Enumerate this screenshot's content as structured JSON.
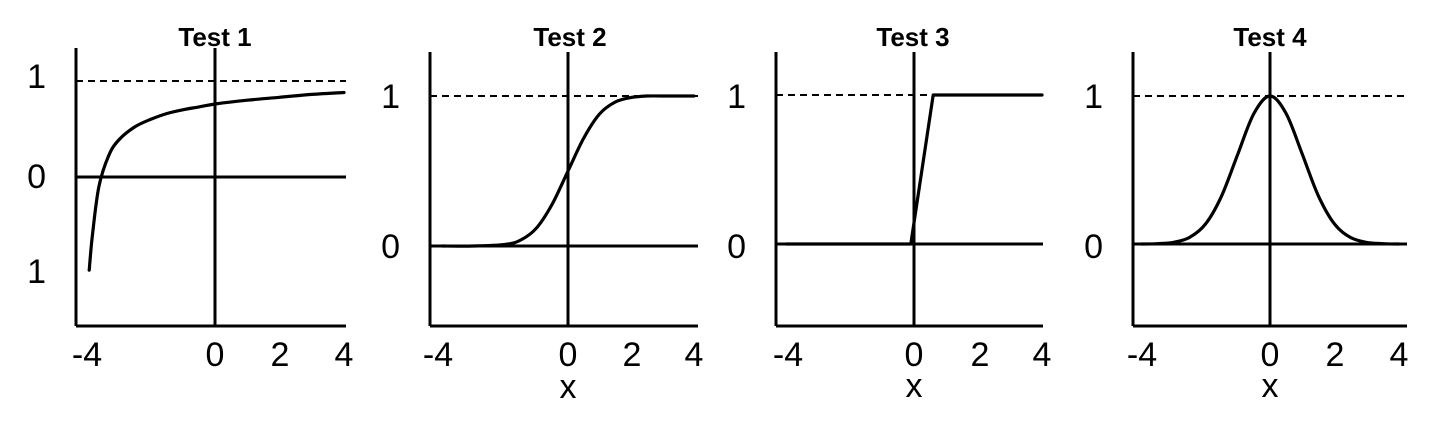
{
  "chart_data": [
    {
      "type": "line",
      "title": "Test 1",
      "xlabel": "",
      "ylabel": "",
      "x_ticks": [
        "-4",
        "0",
        "2",
        "4"
      ],
      "y_ticks": [
        "1",
        "0",
        "1"
      ],
      "xlim": [
        -4,
        4
      ],
      "ylim": [
        -1,
        1.15
      ],
      "reference_line_y": 1,
      "x": [
        -3.9,
        -3.8,
        -3.6,
        -3.3,
        -3.0,
        -2.5,
        -2.0,
        -1.5,
        -1.0,
        -0.5,
        0.0,
        1.0,
        2.0,
        3.0,
        4.0
      ],
      "y": [
        -0.97,
        -0.6,
        -0.1,
        0.22,
        0.38,
        0.52,
        0.6,
        0.66,
        0.7,
        0.73,
        0.76,
        0.8,
        0.83,
        0.86,
        0.88
      ]
    },
    {
      "type": "line",
      "title": "Test 2",
      "xlabel": "x",
      "ylabel": "",
      "x_ticks": [
        "-4",
        "0",
        "2",
        "4"
      ],
      "y_ticks": [
        "1",
        "0"
      ],
      "xlim": [
        -4,
        4
      ],
      "ylim": [
        -0.5,
        1.25
      ],
      "reference_line_y": 1,
      "x": [
        -4.0,
        -3.0,
        -2.0,
        -1.5,
        -1.0,
        -0.5,
        0.0,
        0.5,
        1.0,
        1.5,
        2.0,
        2.5,
        3.0,
        4.0
      ],
      "y": [
        0.0,
        0.0,
        0.01,
        0.04,
        0.12,
        0.28,
        0.5,
        0.72,
        0.88,
        0.96,
        0.99,
        1.0,
        1.0,
        1.0
      ]
    },
    {
      "type": "line",
      "title": "Test 3",
      "xlabel": "x",
      "ylabel": "",
      "x_ticks": [
        "-4",
        "0",
        "2",
        "4"
      ],
      "y_ticks": [
        "1",
        "0"
      ],
      "xlim": [
        -4,
        4
      ],
      "ylim": [
        -0.5,
        1.25
      ],
      "reference_line_y": 1,
      "x": [
        -4.0,
        -0.1,
        0.6,
        4.0
      ],
      "y": [
        0.0,
        0.0,
        1.0,
        1.0
      ]
    },
    {
      "type": "line",
      "title": "Test 4",
      "xlabel": "x",
      "ylabel": "",
      "x_ticks": [
        "-4",
        "0",
        "2",
        "4"
      ],
      "y_ticks": [
        "1",
        "0"
      ],
      "xlim": [
        -4,
        4
      ],
      "ylim": [
        -0.5,
        1.25
      ],
      "reference_line_y": 1,
      "x": [
        -4.0,
        -3.5,
        -3.0,
        -2.5,
        -2.0,
        -1.5,
        -1.0,
        -0.5,
        0.0,
        0.5,
        1.0,
        1.5,
        2.0,
        2.5,
        3.0,
        3.5,
        4.0
      ],
      "y": [
        0.0,
        0.002,
        0.011,
        0.044,
        0.135,
        0.325,
        0.607,
        0.882,
        1.0,
        0.882,
        0.607,
        0.325,
        0.135,
        0.044,
        0.011,
        0.002,
        0.0
      ]
    }
  ]
}
